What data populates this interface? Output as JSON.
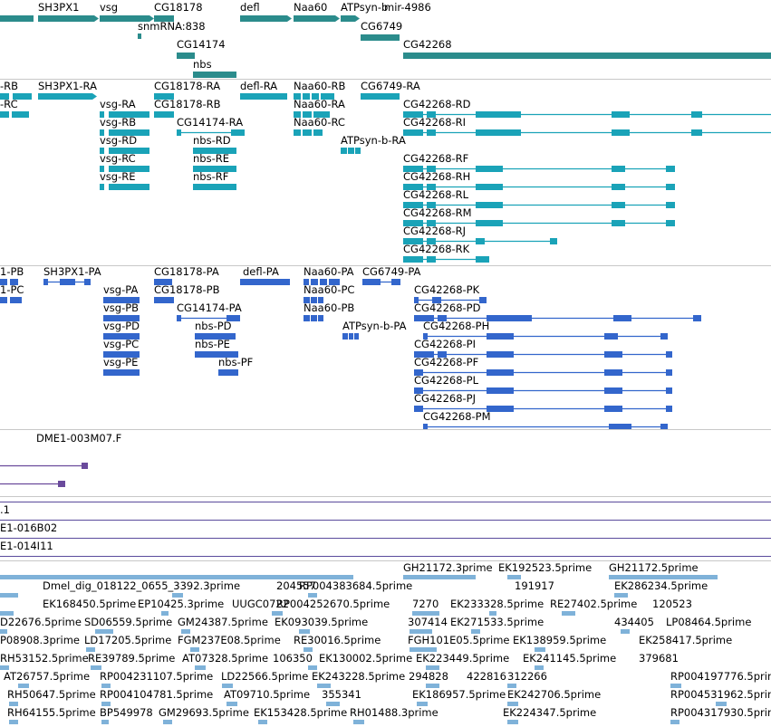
{
  "colors": {
    "gene": "#2b8c8c",
    "transcript": "#1aa3b8",
    "protein": "#3366cc",
    "cdna": "#6a4a9c",
    "bac": "#5a4a9c",
    "est": "#7fb2d9"
  },
  "tracks": {
    "genes": {
      "labels": [
        "SH3PX1",
        "vsg",
        "CG18178",
        "defl",
        "Naa60",
        "ATPsyn-b",
        "mir-4986",
        "snmRNA:838",
        "CG6749",
        "CG14174",
        "CG42268",
        "nbs"
      ]
    },
    "transcripts": {
      "labels": [
        "-RB",
        "SH3PX1-RA",
        "CG18178-RA",
        "defl-RA",
        "Naa60-RB",
        "CG6749-RA",
        "-RC",
        "vsg-RA",
        "CG18178-RB",
        "Naa60-RA",
        "CG42268-RD",
        "vsg-RB",
        "CG14174-RA",
        "Naa60-RC",
        "CG42268-RI",
        "vsg-RD",
        "nbs-RD",
        "ATPsyn-b-RA",
        "vsg-RC",
        "nbs-RE",
        "CG42268-RF",
        "vsg-RE",
        "nbs-RF",
        "CG42268-RH",
        "CG42268-RL",
        "CG42268-RM",
        "CG42268-RJ",
        "CG42268-RK"
      ]
    },
    "proteins": {
      "labels": [
        "1-PB",
        "SH3PX1-PA",
        "CG18178-PA",
        "defl-PA",
        "Naa60-PA",
        "CG6749-PA",
        "1-PC",
        "vsg-PA",
        "CG18178-PB",
        "Naa60-PC",
        "CG42268-PK",
        "vsg-PB",
        "CG14174-PA",
        "Naa60-PB",
        "CG42268-PD",
        "vsg-PD",
        "nbs-PD",
        "ATPsyn-b-PA",
        "CG42268-PH",
        "vsg-PC",
        "nbs-PE",
        "CG42268-PI",
        "vsg-PE",
        "nbs-PF",
        "CG42268-PF",
        "CG42268-PL",
        "CG42268-PJ",
        "CG42268-PM"
      ]
    },
    "cdna": {
      "labels": [
        "DME1-003M07.F"
      ]
    },
    "bac": {
      "labels": [
        ".1",
        "E1-016B02",
        "E1-014I11"
      ]
    },
    "est": {
      "labels": [
        "GH21172.3prime",
        "EK192523.5prime",
        "GH21172.5prime",
        "Dmel_dig_018122_0655_3392.3prime",
        "204557",
        "RP004383684.5prime",
        "191917",
        "EK286234.5prime",
        "EK168450.5prime",
        "EP10425.3prime",
        "UUGC0722",
        "RP004252670.5prime",
        "7270",
        "EK233328.5prime",
        "RE27402.5prime",
        "120523",
        "D22676.5prime",
        "SD06559.5prime",
        "GM24387.5prime",
        "EK093039.5prime",
        "307414",
        "EK271533.5prime",
        "434405",
        "LP08464.5prime",
        "P08908.3prime",
        "LD17205.5prime",
        "FGM237E08.5prime",
        "RE30016.5prime",
        "FGH101E05.5prime",
        "EK138959.5prime",
        "EK258417.5prime",
        "RH53152.5prime",
        "RE39789.5prime",
        "AT07328.5prime",
        "106350",
        "EK130002.5prime",
        "EK223449.5prime",
        "EK241145.5prime",
        "379681",
        "AT26757.5prime",
        "RP004231107.5prime",
        "LD22566.5prime",
        "EK243228.5prime",
        "294828",
        "422816",
        "312266",
        "RP004197776.5prime",
        "RH50647.5prime",
        "RP004104781.5prime",
        "AT09710.5prime",
        "355341",
        "EK186957.5prime",
        "EK242706.5prime",
        "RP004531962.5prime",
        "RH64155.5prime",
        "BP549978",
        "GM29693.5prime",
        "EK153428.5prime",
        "RH01488.3prime",
        "EK224347.5prime",
        "RP004317930.5prime"
      ]
    }
  }
}
